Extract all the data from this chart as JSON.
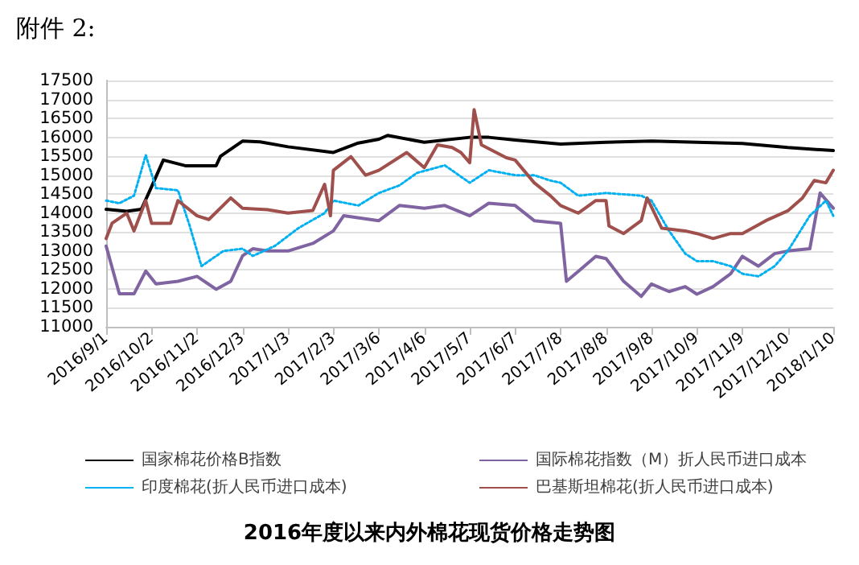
{
  "chart_data": {
    "type": "line",
    "title": "2016年度以来内外棉花现货价格走势图",
    "annotations": [
      "附件 2:"
    ],
    "xlim": [
      "2016-09-01",
      "2018-01-10"
    ],
    "xticks": [
      {
        "value": "2016-09-01",
        "label": "2016/9/1"
      },
      {
        "value": "2016-10-02",
        "label": "2016/10/2"
      },
      {
        "value": "2016-11-02",
        "label": "2016/11/2"
      },
      {
        "value": "2016-12-03",
        "label": "2016/12/3"
      },
      {
        "value": "2017-01-03",
        "label": "2017/1/3"
      },
      {
        "value": "2017-02-03",
        "label": "2017/2/3"
      },
      {
        "value": "2017-03-06",
        "label": "2017/3/6"
      },
      {
        "value": "2017-04-06",
        "label": "2017/4/6"
      },
      {
        "value": "2017-05-07",
        "label": "2017/5/7"
      },
      {
        "value": "2017-06-07",
        "label": "2017/6/7"
      },
      {
        "value": "2017-07-08",
        "label": "2017/7/8"
      },
      {
        "value": "2017-08-08",
        "label": "2017/8/8"
      },
      {
        "value": "2017-09-08",
        "label": "2017/9/8"
      },
      {
        "value": "2017-10-09",
        "label": "2017/10/9"
      },
      {
        "value": "2017-11-09",
        "label": "2017/11/9"
      },
      {
        "value": "2017-12-10",
        "label": "2017/12/10"
      },
      {
        "value": "2018-01-10",
        "label": "2018/1/10"
      }
    ],
    "ylim": [
      11000,
      17500
    ],
    "yticks": [
      11000,
      11500,
      12000,
      12500,
      13000,
      13500,
      14000,
      14500,
      15000,
      15500,
      16000,
      16500,
      17000,
      17500
    ],
    "grid": "y",
    "legend": "bottom",
    "marker": "none",
    "series": [
      {
        "name": "国家棉花价格B指数",
        "color": "#000000",
        "line_style": "solid",
        "x": [
          "2016-09-01",
          "2016-09-15",
          "2016-09-25",
          "2016-10-02",
          "2016-10-10",
          "2016-10-25",
          "2016-11-02",
          "2016-11-15",
          "2016-11-18",
          "2016-12-03",
          "2016-12-15",
          "2017-01-03",
          "2017-02-03",
          "2017-02-20",
          "2017-03-06",
          "2017-03-12",
          "2017-04-06",
          "2017-05-07",
          "2017-05-20",
          "2017-06-07",
          "2017-07-08",
          "2017-08-08",
          "2017-09-08",
          "2017-10-09",
          "2017-11-09",
          "2017-12-10",
          "2018-01-10"
        ],
        "values": [
          14100,
          14050,
          14100,
          14700,
          15400,
          15250,
          15250,
          15250,
          15500,
          15900,
          15880,
          15750,
          15600,
          15850,
          15950,
          16050,
          15870,
          16000,
          16000,
          15930,
          15820,
          15870,
          15900,
          15870,
          15840,
          15730,
          15650
        ]
      },
      {
        "name": "国际棉花指数（M）折人民币进口成本",
        "color": "#8064a2",
        "line_style": "solid",
        "x": [
          "2016-09-01",
          "2016-09-10",
          "2016-09-20",
          "2016-09-28",
          "2016-10-05",
          "2016-10-20",
          "2016-11-02",
          "2016-11-15",
          "2016-11-25",
          "2016-12-03",
          "2016-12-10",
          "2016-12-20",
          "2017-01-03",
          "2017-01-20",
          "2017-02-03",
          "2017-02-10",
          "2017-03-06",
          "2017-03-20",
          "2017-04-06",
          "2017-04-20",
          "2017-05-07",
          "2017-05-20",
          "2017-06-07",
          "2017-06-20",
          "2017-07-08",
          "2017-07-12",
          "2017-07-20",
          "2017-08-01",
          "2017-08-08",
          "2017-08-20",
          "2017-09-01",
          "2017-09-08",
          "2017-09-20",
          "2017-10-01",
          "2017-10-09",
          "2017-10-20",
          "2017-11-01",
          "2017-11-09",
          "2017-11-20",
          "2017-12-01",
          "2017-12-10",
          "2017-12-25",
          "2018-01-01",
          "2018-01-10"
        ],
        "values": [
          13130,
          11870,
          11870,
          12470,
          12130,
          12200,
          12330,
          11990,
          12200,
          12870,
          13060,
          13000,
          13000,
          13200,
          13530,
          13930,
          13800,
          14200,
          14130,
          14200,
          13930,
          14260,
          14200,
          13800,
          13730,
          12200,
          12460,
          12860,
          12800,
          12200,
          11800,
          12130,
          11930,
          12060,
          11860,
          12060,
          12400,
          12860,
          12600,
          12930,
          13000,
          13060,
          14530,
          14130
        ]
      },
      {
        "name": "印度棉花(折人民币进口成本)",
        "color": "#00b0f0",
        "line_style": "dotted",
        "x": [
          "2016-09-01",
          "2016-09-10",
          "2016-09-20",
          "2016-09-28",
          "2016-10-05",
          "2016-10-20",
          "2016-10-28",
          "2016-11-05",
          "2016-11-20",
          "2016-12-03",
          "2016-12-10",
          "2016-12-25",
          "2017-01-10",
          "2017-01-28",
          "2017-02-03",
          "2017-02-20",
          "2017-03-06",
          "2017-03-20",
          "2017-04-01",
          "2017-04-20",
          "2017-05-07",
          "2017-05-20",
          "2017-06-07",
          "2017-06-20",
          "2017-07-01",
          "2017-07-08",
          "2017-07-20",
          "2017-08-08",
          "2017-09-01",
          "2017-09-08",
          "2017-09-20",
          "2017-10-01",
          "2017-10-09",
          "2017-10-20",
          "2017-11-01",
          "2017-11-09",
          "2017-11-20",
          "2017-12-01",
          "2017-12-10",
          "2017-12-25",
          "2018-01-05",
          "2018-01-10"
        ],
        "values": [
          14330,
          14260,
          14460,
          15530,
          14660,
          14600,
          13660,
          12600,
          13000,
          13060,
          12870,
          13130,
          13600,
          14000,
          14330,
          14200,
          14530,
          14730,
          15060,
          15260,
          14800,
          15130,
          15000,
          15000,
          14860,
          14800,
          14460,
          14530,
          14460,
          14330,
          13530,
          12930,
          12730,
          12730,
          12600,
          12400,
          12330,
          12600,
          13000,
          13930,
          14330,
          13930
        ]
      },
      {
        "name": "巴基斯坦棉花(折人民币进口成本)",
        "color": "#a0504c",
        "line_style": "solid",
        "x": [
          "2016-09-01",
          "2016-09-05",
          "2016-09-15",
          "2016-09-20",
          "2016-09-28",
          "2016-10-02",
          "2016-10-15",
          "2016-10-20",
          "2016-11-02",
          "2016-11-10",
          "2016-11-25",
          "2016-12-03",
          "2016-12-20",
          "2017-01-03",
          "2017-01-20",
          "2017-01-28",
          "2017-02-01",
          "2017-02-03",
          "2017-02-15",
          "2017-02-25",
          "2017-03-06",
          "2017-03-25",
          "2017-04-06",
          "2017-04-15",
          "2017-04-25",
          "2017-05-01",
          "2017-05-07",
          "2017-05-10",
          "2017-05-15",
          "2017-06-01",
          "2017-06-07",
          "2017-06-20",
          "2017-07-01",
          "2017-07-08",
          "2017-07-20",
          "2017-08-01",
          "2017-08-08",
          "2017-08-10",
          "2017-08-20",
          "2017-09-01",
          "2017-09-05",
          "2017-09-15",
          "2017-10-01",
          "2017-10-09",
          "2017-10-20",
          "2017-11-01",
          "2017-11-09",
          "2017-11-25",
          "2017-12-10",
          "2017-12-20",
          "2017-12-28",
          "2018-01-05",
          "2018-01-10"
        ],
        "values": [
          13330,
          13730,
          14000,
          13530,
          14330,
          13730,
          13730,
          14330,
          13930,
          13830,
          14400,
          14130,
          14090,
          14000,
          14070,
          14760,
          13930,
          15130,
          15490,
          15000,
          15130,
          15600,
          15200,
          15800,
          15730,
          15600,
          15330,
          16730,
          15800,
          15460,
          15400,
          14800,
          14460,
          14200,
          14000,
          14330,
          14330,
          13660,
          13460,
          13800,
          14400,
          13600,
          13530,
          13460,
          13330,
          13460,
          13460,
          13800,
          14060,
          14400,
          14860,
          14800,
          15130
        ]
      }
    ]
  }
}
